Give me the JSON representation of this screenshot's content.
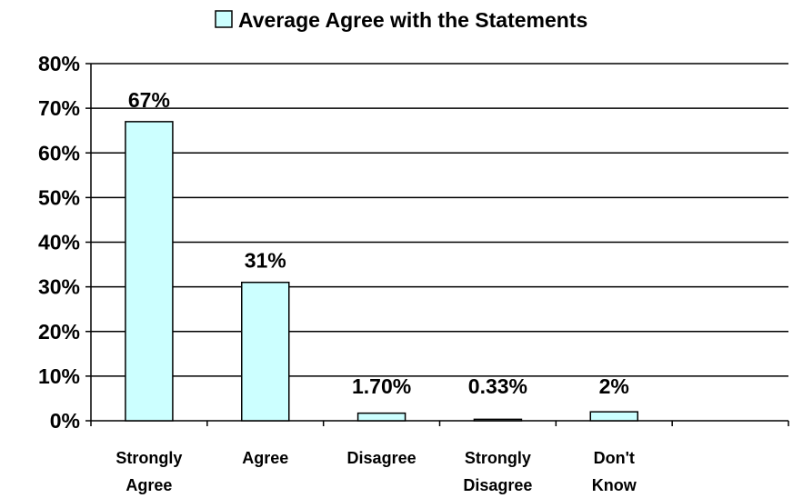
{
  "chart_data": {
    "type": "bar",
    "title": "",
    "legend": {
      "entries": [
        "Average Agree with the Statements"
      ],
      "position": "top"
    },
    "categories": [
      [
        "Strongly",
        "Agree"
      ],
      [
        "Agree"
      ],
      [
        "Disagree"
      ],
      [
        "Strongly",
        "Disagree"
      ],
      [
        "Don't",
        "Know"
      ],
      [
        ""
      ]
    ],
    "series": [
      {
        "name": "Average Agree with the Statements",
        "values": [
          67,
          31,
          1.7,
          0.33,
          2,
          null
        ],
        "data_labels": [
          "67%",
          "31%",
          "1.70%",
          "0.33%",
          "2%",
          ""
        ]
      }
    ],
    "ylim": [
      0,
      80
    ],
    "yticks": [
      "0%",
      "10%",
      "20%",
      "30%",
      "40%",
      "50%",
      "60%",
      "70%",
      "80%"
    ],
    "ytick_values": [
      0,
      10,
      20,
      30,
      40,
      50,
      60,
      70,
      80
    ],
    "grid": true,
    "colors": {
      "bar_fill": "#CCFFFF",
      "bar_stroke": "#000000",
      "grid": "#000000"
    }
  }
}
